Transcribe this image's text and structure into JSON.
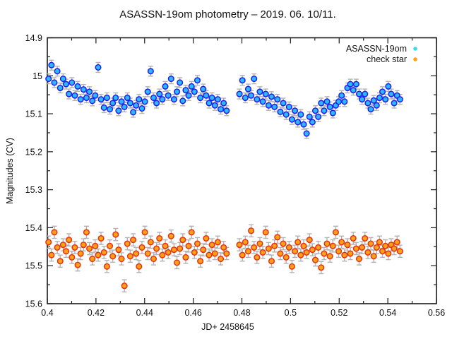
{
  "title": "ASASSN-19om photometry – 2019. 06. 10/11.",
  "axes": {
    "xlabel": "JD+ 2458645",
    "ylabel": "Magnitudes (CV)"
  },
  "legend": {
    "position": "top-right",
    "entries": [
      {
        "label": "ASASSN-19om",
        "marker": "dot",
        "color": "#35dcec"
      },
      {
        "label": "check star",
        "marker": "dot",
        "color": "#ffa318"
      }
    ]
  },
  "colors": {
    "frame": "#1c1c1c",
    "errorbar": "#b3b3b3",
    "background": "#ffffff",
    "target_fill": "#2bb8ff",
    "target_stroke": "#2020f0",
    "check_fill": "#ffa018",
    "check_stroke": "#e63311"
  },
  "chart_data": {
    "type": "scatter",
    "title": "ASASSN-19om photometry – 2019. 06. 10/11.",
    "xlabel": "JD+ 2458645",
    "ylabel": "Magnitudes (CV)",
    "xlim": [
      0.4,
      0.56
    ],
    "ylim": [
      15.6,
      14.9
    ],
    "y_inverted": true,
    "grid": false,
    "legend_position": "top-right",
    "x_ticks": [
      0.4,
      0.42,
      0.44,
      0.46,
      0.48,
      0.5,
      0.52,
      0.54,
      0.56
    ],
    "x_tick_labels": [
      "0.4",
      "0.42",
      "0.44",
      "0.46",
      "0.48",
      "0.5",
      "0.52",
      "0.54",
      "0.56"
    ],
    "x_minor_ticks": [
      0.41,
      0.43,
      0.45,
      0.47,
      0.49,
      0.51,
      0.53,
      0.55
    ],
    "y_ticks": [
      14.9,
      15.0,
      15.1,
      15.2,
      15.3,
      15.4,
      15.5,
      15.6
    ],
    "y_tick_labels": [
      "14.9",
      "15",
      "15.1",
      "15.2",
      "15.3",
      "15.4",
      "15.5",
      "15.6"
    ],
    "y_minor_ticks": [
      14.95,
      15.05,
      15.15,
      15.25,
      15.35,
      15.45,
      15.55
    ],
    "series": [
      {
        "name": "ASASSN-19om",
        "marker": "circle",
        "marker_fill": "#2bb8ff",
        "marker_stroke": "#2020f0",
        "error_mag": 0.013,
        "points": [
          [
            0.4005,
            15.008
          ],
          [
            0.4017,
            14.972
          ],
          [
            0.4029,
            15.018
          ],
          [
            0.4041,
            14.988
          ],
          [
            0.4053,
            15.032
          ],
          [
            0.4065,
            15.008
          ],
          [
            0.4077,
            15.022
          ],
          [
            0.4089,
            15.048
          ],
          [
            0.4101,
            15.018
          ],
          [
            0.4113,
            15.052
          ],
          [
            0.4125,
            15.028
          ],
          [
            0.4137,
            15.062
          ],
          [
            0.4149,
            15.036
          ],
          [
            0.4161,
            15.058
          ],
          [
            0.4173,
            15.042
          ],
          [
            0.4185,
            15.066
          ],
          [
            0.4197,
            15.052
          ],
          [
            0.4209,
            14.978
          ],
          [
            0.4221,
            15.062
          ],
          [
            0.4233,
            15.084
          ],
          [
            0.4245,
            15.058
          ],
          [
            0.4257,
            15.088
          ],
          [
            0.4269,
            15.072
          ],
          [
            0.4281,
            15.058
          ],
          [
            0.4293,
            15.092
          ],
          [
            0.4305,
            15.068
          ],
          [
            0.4317,
            15.082
          ],
          [
            0.4329,
            15.058
          ],
          [
            0.4341,
            15.072
          ],
          [
            0.4353,
            15.096
          ],
          [
            0.4365,
            15.078
          ],
          [
            0.4377,
            15.062
          ],
          [
            0.4389,
            15.086
          ],
          [
            0.4401,
            15.068
          ],
          [
            0.4413,
            15.042
          ],
          [
            0.4425,
            14.988
          ],
          [
            0.4437,
            15.058
          ],
          [
            0.4449,
            15.072
          ],
          [
            0.4461,
            15.048
          ],
          [
            0.4473,
            15.062
          ],
          [
            0.4485,
            15.028
          ],
          [
            0.4497,
            15.052
          ],
          [
            0.4509,
            15.008
          ],
          [
            0.4521,
            15.062
          ],
          [
            0.4533,
            15.042
          ],
          [
            0.4545,
            15.018
          ],
          [
            0.4557,
            15.066
          ],
          [
            0.4569,
            15.038
          ],
          [
            0.4581,
            15.052
          ],
          [
            0.4593,
            15.028
          ],
          [
            0.4605,
            15.042
          ],
          [
            0.4617,
            15.012
          ],
          [
            0.4629,
            15.058
          ],
          [
            0.4641,
            15.035
          ],
          [
            0.4653,
            15.052
          ],
          [
            0.4665,
            15.072
          ],
          [
            0.4677,
            15.058
          ],
          [
            0.4689,
            15.078
          ],
          [
            0.4701,
            15.062
          ],
          [
            0.4713,
            15.088
          ],
          [
            0.4725,
            15.072
          ],
          [
            0.4737,
            15.092
          ],
          [
            0.479,
            15.048
          ],
          [
            0.4802,
            15.012
          ],
          [
            0.4814,
            15.058
          ],
          [
            0.4826,
            15.035
          ],
          [
            0.4838,
            15.052
          ],
          [
            0.485,
            15.008
          ],
          [
            0.4862,
            15.062
          ],
          [
            0.4874,
            15.042
          ],
          [
            0.4886,
            15.068
          ],
          [
            0.4898,
            15.048
          ],
          [
            0.491,
            15.078
          ],
          [
            0.4922,
            15.055
          ],
          [
            0.4934,
            15.082
          ],
          [
            0.4946,
            15.062
          ],
          [
            0.4958,
            15.095
          ],
          [
            0.497,
            15.072
          ],
          [
            0.4982,
            15.102
          ],
          [
            0.4994,
            15.082
          ],
          [
            0.5006,
            15.115
          ],
          [
            0.5018,
            15.092
          ],
          [
            0.503,
            15.122
          ],
          [
            0.5042,
            15.102
          ],
          [
            0.5054,
            15.128
          ],
          [
            0.5066,
            15.152
          ],
          [
            0.5078,
            15.108
          ],
          [
            0.509,
            15.122
          ],
          [
            0.5102,
            15.092
          ],
          [
            0.5114,
            15.108
          ],
          [
            0.5126,
            15.072
          ],
          [
            0.5138,
            15.092
          ],
          [
            0.515,
            15.068
          ],
          [
            0.5162,
            15.082
          ],
          [
            0.5174,
            15.098
          ],
          [
            0.5186,
            15.078
          ],
          [
            0.5198,
            15.068
          ],
          [
            0.521,
            15.052
          ],
          [
            0.5222,
            15.068
          ],
          [
            0.5234,
            15.032
          ],
          [
            0.5246,
            15.022
          ],
          [
            0.5258,
            15.038
          ],
          [
            0.527,
            15.022
          ],
          [
            0.5282,
            15.048
          ],
          [
            0.5294,
            15.062
          ],
          [
            0.5306,
            15.048
          ],
          [
            0.5318,
            15.072
          ],
          [
            0.533,
            15.088
          ],
          [
            0.5342,
            15.065
          ],
          [
            0.5354,
            15.078
          ],
          [
            0.5366,
            15.058
          ],
          [
            0.5378,
            15.042
          ],
          [
            0.539,
            15.062
          ],
          [
            0.5402,
            15.028
          ],
          [
            0.5414,
            15.048
          ],
          [
            0.5426,
            15.072
          ],
          [
            0.5438,
            15.052
          ],
          [
            0.545,
            15.062
          ]
        ]
      },
      {
        "name": "check star",
        "marker": "circle",
        "marker_fill": "#ffa018",
        "marker_stroke": "#e63311",
        "error_mag": 0.016,
        "points": [
          [
            0.4005,
            15.438
          ],
          [
            0.4017,
            15.472
          ],
          [
            0.4029,
            15.412
          ],
          [
            0.4041,
            15.452
          ],
          [
            0.4053,
            15.488
          ],
          [
            0.4065,
            15.445
          ],
          [
            0.4077,
            15.462
          ],
          [
            0.4089,
            15.432
          ],
          [
            0.4101,
            15.478
          ],
          [
            0.4113,
            15.452
          ],
          [
            0.4125,
            15.498
          ],
          [
            0.4137,
            15.468
          ],
          [
            0.4149,
            15.445
          ],
          [
            0.4161,
            15.412
          ],
          [
            0.4173,
            15.455
          ],
          [
            0.4185,
            15.482
          ],
          [
            0.4197,
            15.448
          ],
          [
            0.4209,
            15.472
          ],
          [
            0.4221,
            15.428
          ],
          [
            0.4233,
            15.465
          ],
          [
            0.4245,
            15.502
          ],
          [
            0.4257,
            15.448
          ],
          [
            0.4269,
            15.475
          ],
          [
            0.4281,
            15.418
          ],
          [
            0.4293,
            15.458
          ],
          [
            0.4305,
            15.482
          ],
          [
            0.4317,
            15.553
          ],
          [
            0.4329,
            15.442
          ],
          [
            0.4341,
            15.475
          ],
          [
            0.4353,
            15.432
          ],
          [
            0.4365,
            15.468
          ],
          [
            0.4377,
            15.502
          ],
          [
            0.4389,
            15.452
          ],
          [
            0.4401,
            15.412
          ],
          [
            0.4413,
            15.468
          ],
          [
            0.4425,
            15.438
          ],
          [
            0.4437,
            15.482
          ],
          [
            0.4449,
            15.455
          ],
          [
            0.4461,
            15.428
          ],
          [
            0.4473,
            15.472
          ],
          [
            0.4485,
            15.448
          ],
          [
            0.4497,
            15.465
          ],
          [
            0.4509,
            15.422
          ],
          [
            0.4521,
            15.458
          ],
          [
            0.4533,
            15.492
          ],
          [
            0.4545,
            15.455
          ],
          [
            0.4557,
            15.432
          ],
          [
            0.4569,
            15.478
          ],
          [
            0.4581,
            15.448
          ],
          [
            0.4593,
            15.412
          ],
          [
            0.4605,
            15.465
          ],
          [
            0.4617,
            15.442
          ],
          [
            0.4629,
            15.488
          ],
          [
            0.4641,
            15.458
          ],
          [
            0.4653,
            15.428
          ],
          [
            0.4665,
            15.472
          ],
          [
            0.4677,
            15.445
          ],
          [
            0.4689,
            15.468
          ],
          [
            0.4701,
            15.438
          ],
          [
            0.4713,
            15.482
          ],
          [
            0.4725,
            15.452
          ],
          [
            0.4737,
            15.468
          ],
          [
            0.479,
            15.445
          ],
          [
            0.4802,
            15.472
          ],
          [
            0.4814,
            15.438
          ],
          [
            0.4826,
            15.462
          ],
          [
            0.4838,
            15.408
          ],
          [
            0.485,
            15.452
          ],
          [
            0.4862,
            15.478
          ],
          [
            0.4874,
            15.442
          ],
          [
            0.4886,
            15.465
          ],
          [
            0.4898,
            15.412
          ],
          [
            0.491,
            15.455
          ],
          [
            0.4922,
            15.488
          ],
          [
            0.4934,
            15.448
          ],
          [
            0.4946,
            15.425
          ],
          [
            0.4958,
            15.468
          ],
          [
            0.497,
            15.442
          ],
          [
            0.4982,
            15.478
          ],
          [
            0.4994,
            15.452
          ],
          [
            0.5006,
            15.502
          ],
          [
            0.5018,
            15.462
          ],
          [
            0.503,
            15.438
          ],
          [
            0.5042,
            15.472
          ],
          [
            0.5054,
            15.448
          ],
          [
            0.5066,
            15.465
          ],
          [
            0.5078,
            15.432
          ],
          [
            0.509,
            15.458
          ],
          [
            0.5102,
            15.485
          ],
          [
            0.5114,
            15.452
          ],
          [
            0.5126,
            15.505
          ],
          [
            0.5138,
            15.468
          ],
          [
            0.515,
            15.442
          ],
          [
            0.5162,
            15.475
          ],
          [
            0.5174,
            15.448
          ],
          [
            0.5186,
            15.412
          ],
          [
            0.5198,
            15.462
          ],
          [
            0.521,
            15.438
          ],
          [
            0.5222,
            15.472
          ],
          [
            0.5234,
            15.445
          ],
          [
            0.5246,
            15.468
          ],
          [
            0.5258,
            15.428
          ],
          [
            0.527,
            15.455
          ],
          [
            0.5282,
            15.482
          ],
          [
            0.5294,
            15.452
          ],
          [
            0.5306,
            15.428
          ],
          [
            0.5318,
            15.465
          ],
          [
            0.533,
            15.442
          ],
          [
            0.5342,
            15.475
          ],
          [
            0.5354,
            15.452
          ],
          [
            0.5366,
            15.438
          ],
          [
            0.5378,
            15.462
          ],
          [
            0.539,
            15.448
          ],
          [
            0.5402,
            15.468
          ],
          [
            0.5414,
            15.445
          ],
          [
            0.5426,
            15.455
          ],
          [
            0.5438,
            15.438
          ],
          [
            0.545,
            15.462
          ]
        ]
      }
    ]
  }
}
